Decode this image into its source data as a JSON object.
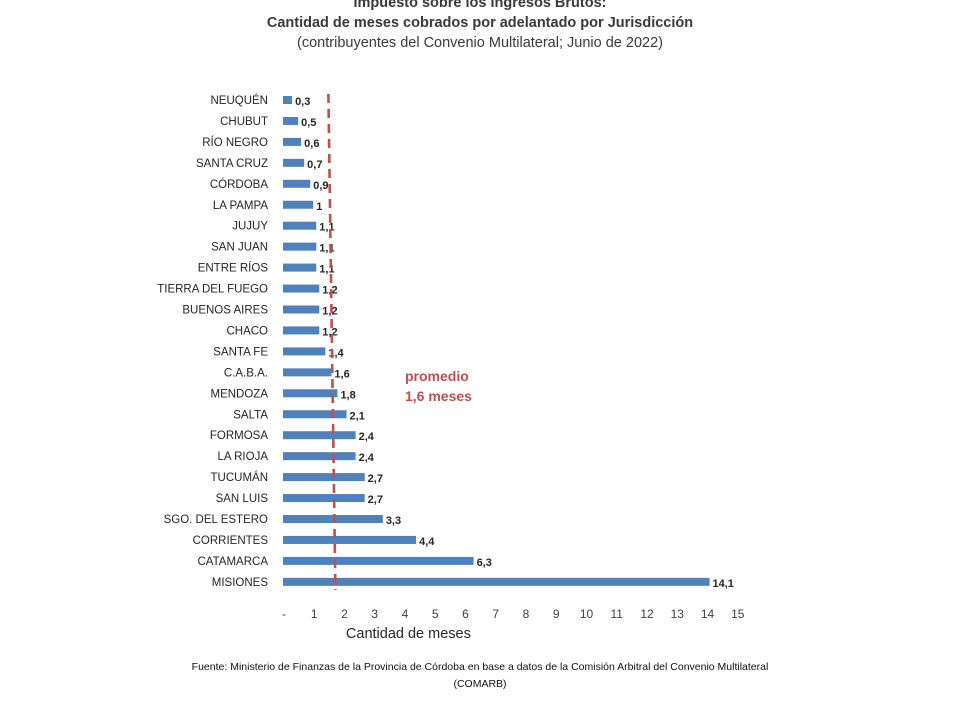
{
  "title": "Impuesto sobre los Ingresos Brutos:",
  "subtitle": "Cantidad de meses cobrados por adelantado por Jurisdicción",
  "subtitle2": "(contribuyentes del Convenio Multilateral; Junio de 2022)",
  "source_line1": "Fuente: Ministerio de Finanzas de la Provincia de Córdoba en base a datos de la Comisión Arbitral del Convenio Multilateral",
  "source_line2": "(COMARB)",
  "colors": {
    "bar": "#4f81bd",
    "average": "#c0504d",
    "text": "#404040"
  },
  "chart_data": {
    "type": "bar",
    "orientation": "horizontal",
    "categories": [
      "NEUQUÉN",
      "CHUBUT",
      "RÍO NEGRO",
      "SANTA CRUZ",
      "CÓRDOBA",
      "LA PAMPA",
      "JUJUY",
      "SAN JUAN",
      "ENTRE RÍOS",
      "TIERRA DEL FUEGO",
      "BUENOS AIRES",
      "CHACO",
      "SANTA FE",
      "C.A.B.A.",
      "MENDOZA",
      "SALTA",
      "FORMOSA",
      "LA RIOJA",
      "TUCUMÁN",
      "SAN LUIS",
      "SGO. DEL ESTERO",
      "CORRIENTES",
      "CATAMARCA",
      "MISIONES"
    ],
    "values": [
      0.3,
      0.5,
      0.6,
      0.7,
      0.9,
      1,
      1.1,
      1.1,
      1.1,
      1.2,
      1.2,
      1.2,
      1.4,
      1.6,
      1.8,
      2.1,
      2.4,
      2.4,
      2.7,
      2.7,
      3.3,
      4.4,
      6.3,
      14.1
    ],
    "value_labels": [
      "0,3",
      "0,5",
      "0,6",
      "0,7",
      "0,9",
      "1",
      "1,1",
      "1,1",
      "1,1",
      "1,2",
      "1,2",
      "1,2",
      "1,4",
      "1,6",
      "1,8",
      "2,1",
      "2,4",
      "2,4",
      "2,7",
      "2,7",
      "3,3",
      "4,4",
      "6,3",
      "14,1"
    ],
    "xlabel": "Cantidad de meses",
    "xlim": [
      0,
      15
    ],
    "xticks": [
      "-",
      "1",
      "2",
      "3",
      "4",
      "5",
      "6",
      "7",
      "8",
      "9",
      "10",
      "11",
      "12",
      "13",
      "14",
      "15"
    ],
    "average": {
      "value": 1.6,
      "label_line1": "promedio",
      "label_line2": "1,6 meses"
    },
    "grid": false,
    "legend": "none"
  }
}
